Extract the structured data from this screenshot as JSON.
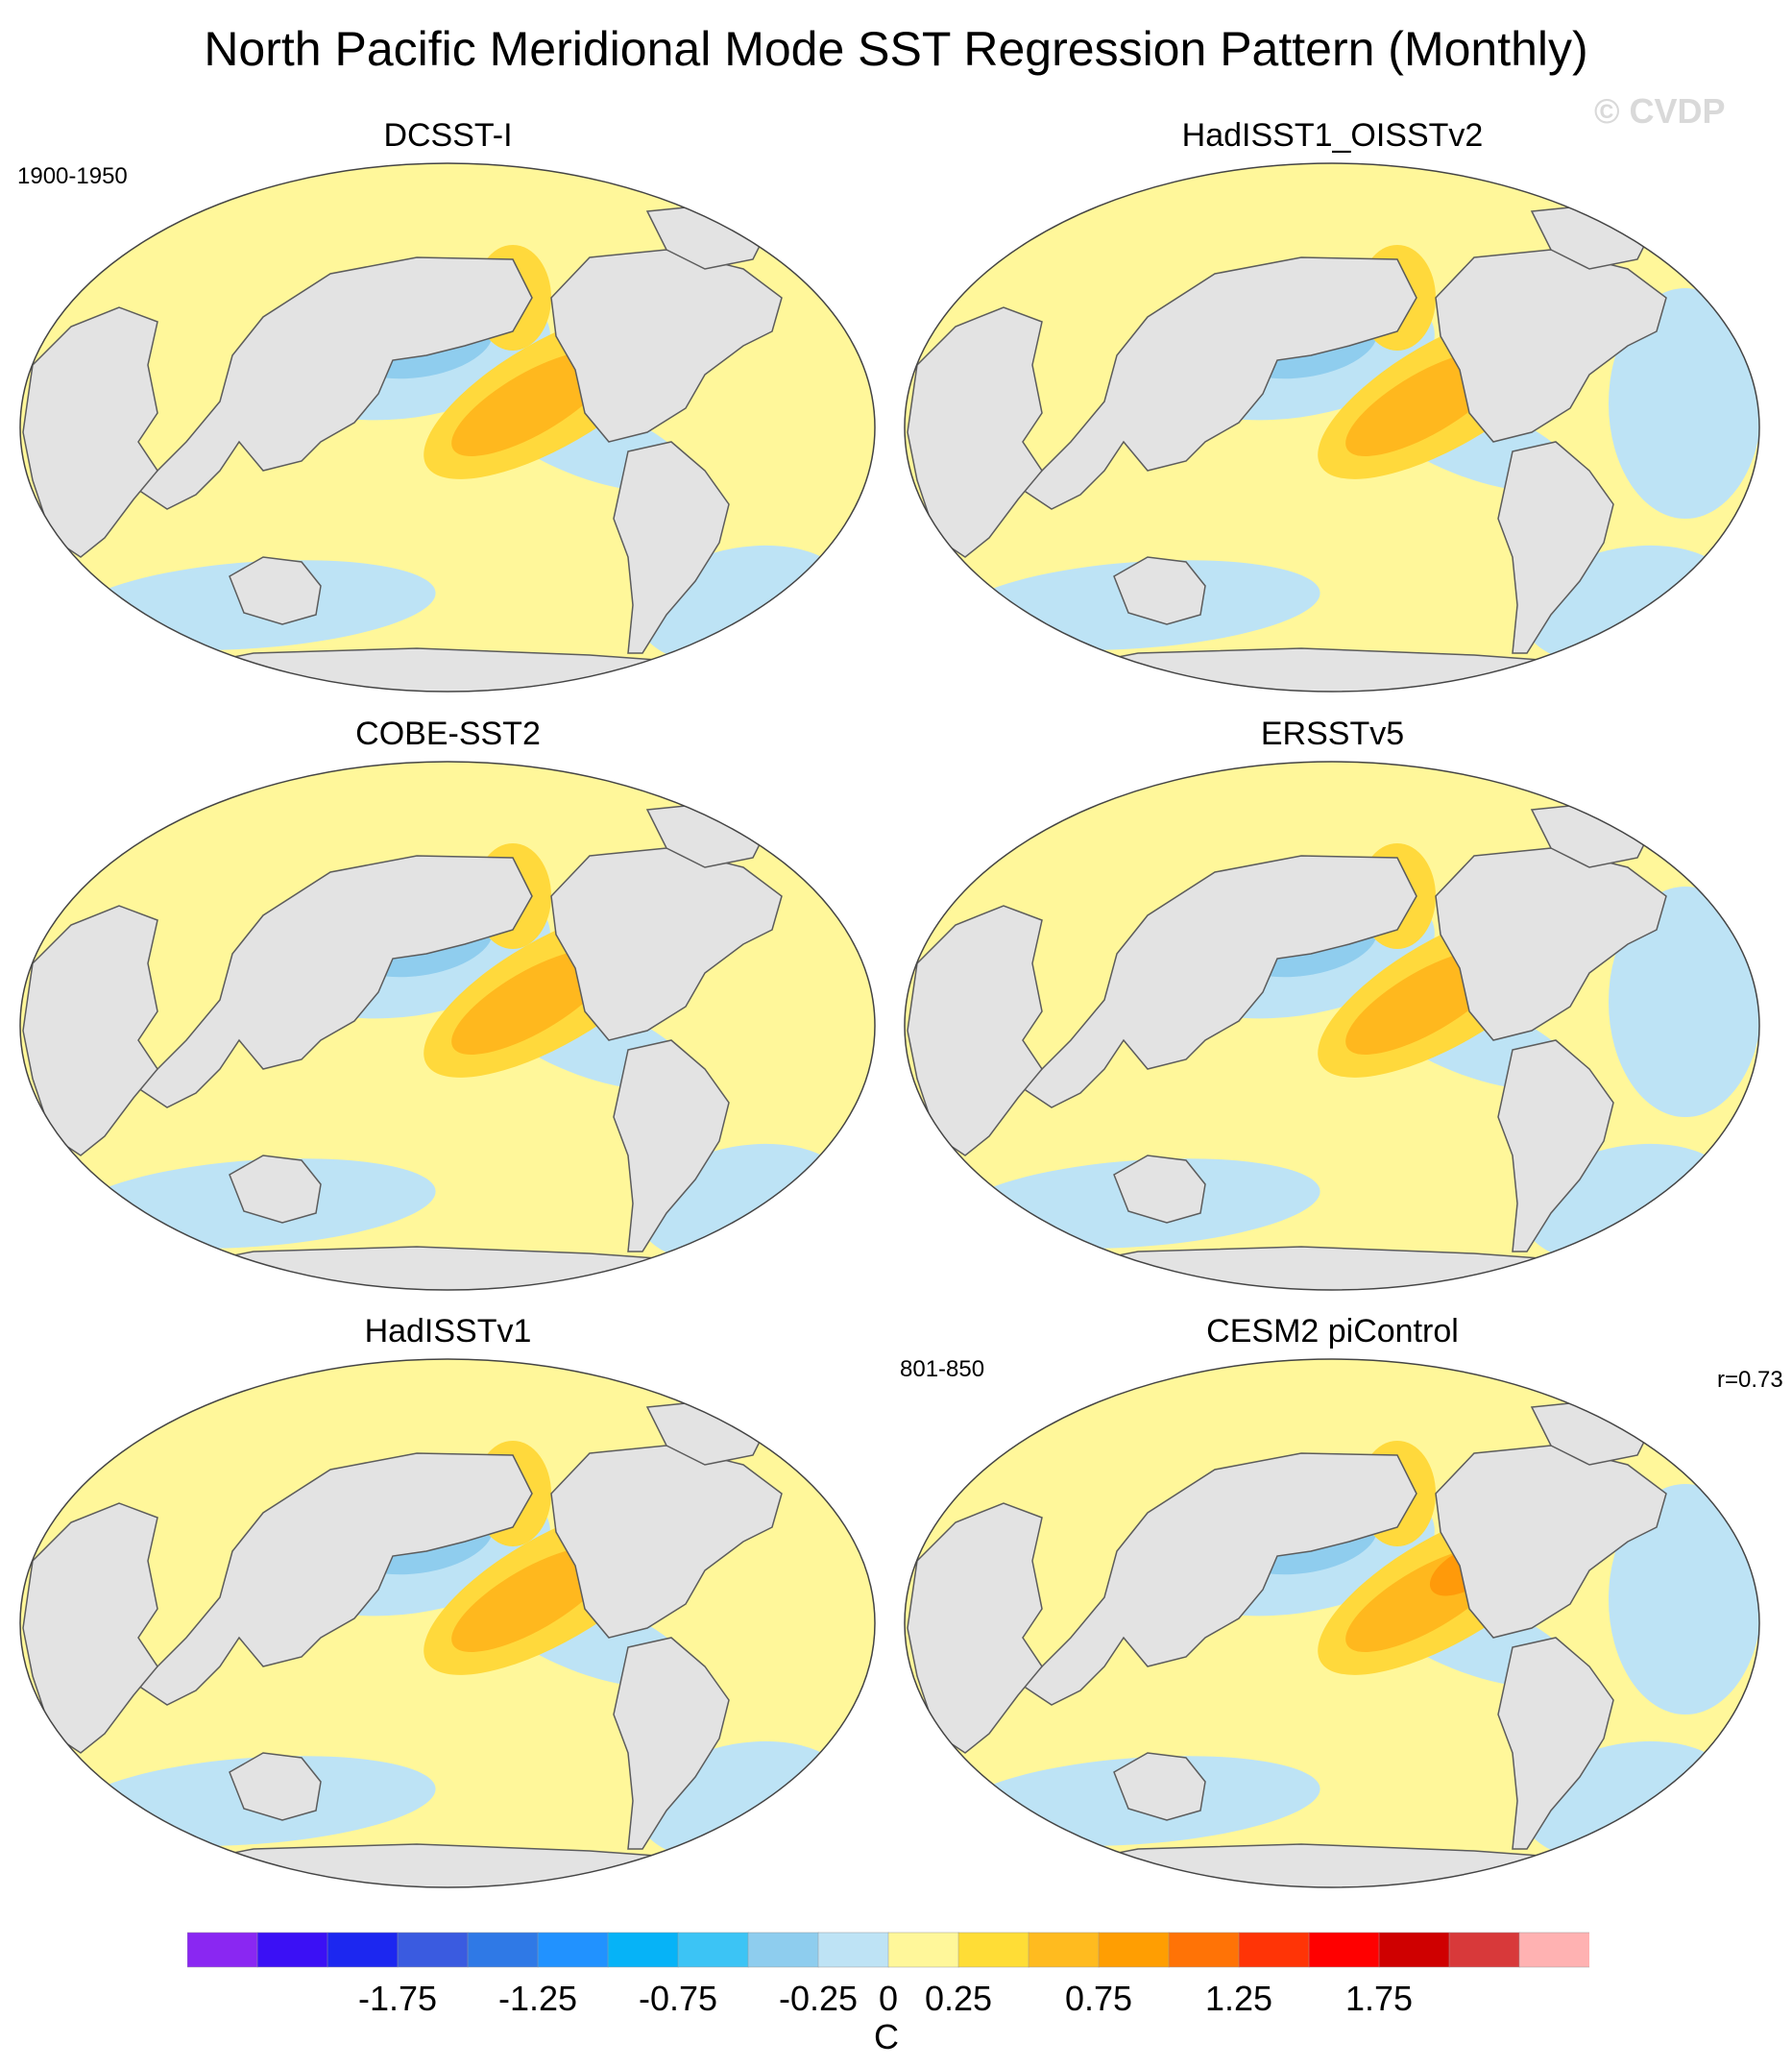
{
  "title": "North Pacific Meridional Mode SST Regression Pattern (Monthly)",
  "watermark": "© CVDP",
  "obs_period_label": "1900-1950",
  "model_period_label": "801-850",
  "pattern_correlation": "r=0.73",
  "colors": {
    "land": "#e3e3e3",
    "coast": "#5c5c5c",
    "pos_weak": "#fff79a",
    "pos_mid": "#ffd93c",
    "pos_strong": "#ffb81e",
    "pos_stronger": "#ff9a0a",
    "neg_weak": "#bde3f5",
    "neg_mid": "#8fcdee",
    "neg_strong": "#3eb7f5"
  },
  "panels": [
    {
      "id": "dcsst-i",
      "title": "DCSST-I"
    },
    {
      "id": "hadisst1-oisstv2",
      "title": "HadISST1_OISSTv2"
    },
    {
      "id": "cobe-sst2",
      "title": "COBE-SST2"
    },
    {
      "id": "ersstv5",
      "title": "ERSSTv5"
    },
    {
      "id": "hadisstv1",
      "title": "HadISSTv1"
    },
    {
      "id": "cesm2-picontrol",
      "title": "CESM2 piControl"
    }
  ],
  "colorbar": {
    "unit": "C",
    "tick_labels": [
      "-1.75",
      "-1.25",
      "-0.75",
      "-0.25",
      "0",
      "0.25",
      "0.75",
      "1.25",
      "1.75"
    ],
    "tick_values": [
      -1.75,
      -1.25,
      -0.75,
      -0.25,
      0,
      0.25,
      0.75,
      1.25,
      1.75
    ],
    "levels": [
      -2.0,
      -1.75,
      -1.5,
      -1.25,
      -1.0,
      -0.75,
      -0.5,
      -0.25,
      0,
      0.25,
      0.5,
      0.75,
      1.0,
      1.25,
      1.5,
      1.75,
      2.0
    ],
    "bin_colors": [
      "#8a27f2",
      "#3b10f5",
      "#1c27f0",
      "#3a5be0",
      "#2f79e6",
      "#2192ff",
      "#06b3f7",
      "#3cc4f5",
      "#8ecdee",
      "#bee3f5",
      "#fff79a",
      "#ffdd36",
      "#ffbb1f",
      "#ff9e02",
      "#ff7306",
      "#ff3406",
      "#ff0000",
      "#cf0000",
      "#d8393a",
      "#ffb2b2"
    ]
  }
}
